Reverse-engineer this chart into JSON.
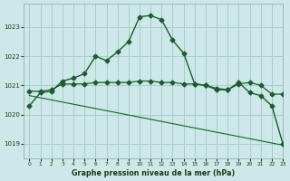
{
  "title": "Graphe pression niveau de la mer (hPa)",
  "bg_color": "#cce8e8",
  "grid_color": "#aacccc",
  "line_color": "#1a5e2a",
  "xlim": [
    -0.5,
    23
  ],
  "ylim": [
    1018.5,
    1023.8
  ],
  "yticks": [
    1019,
    1020,
    1021,
    1022,
    1023
  ],
  "xticks": [
    0,
    1,
    2,
    3,
    4,
    5,
    6,
    7,
    8,
    9,
    10,
    11,
    12,
    13,
    14,
    15,
    16,
    17,
    18,
    19,
    20,
    21,
    22,
    23
  ],
  "series1_x": [
    0,
    1,
    2,
    3,
    4,
    5,
    6,
    7,
    8,
    9,
    10,
    11,
    12,
    13,
    14,
    15,
    16,
    17,
    18,
    19,
    20,
    21,
    22,
    23
  ],
  "series1_y": [
    1020.3,
    1020.75,
    1020.8,
    1021.15,
    1021.25,
    1021.4,
    1022.0,
    1021.85,
    1022.15,
    1022.5,
    1023.35,
    1023.4,
    1023.25,
    1022.55,
    1022.1,
    1021.05,
    1021.0,
    1020.85,
    1020.85,
    1021.1,
    1020.75,
    1020.65,
    1020.3,
    1019.0
  ],
  "series2_x": [
    0,
    1,
    2,
    3,
    4,
    5,
    6,
    7,
    8,
    9,
    10,
    11,
    12,
    13,
    14,
    15,
    16,
    17,
    18,
    19,
    20,
    21,
    22,
    23
  ],
  "series2_y": [
    1020.8,
    1020.8,
    1020.85,
    1021.05,
    1021.05,
    1021.05,
    1021.1,
    1021.1,
    1021.1,
    1021.1,
    1021.15,
    1021.15,
    1021.1,
    1021.1,
    1021.05,
    1021.05,
    1021.0,
    1020.9,
    1020.85,
    1021.05,
    1021.1,
    1021.0,
    1020.7,
    1020.7
  ],
  "series3_x": [
    0,
    23
  ],
  "series3_y": [
    1020.65,
    1018.95
  ]
}
